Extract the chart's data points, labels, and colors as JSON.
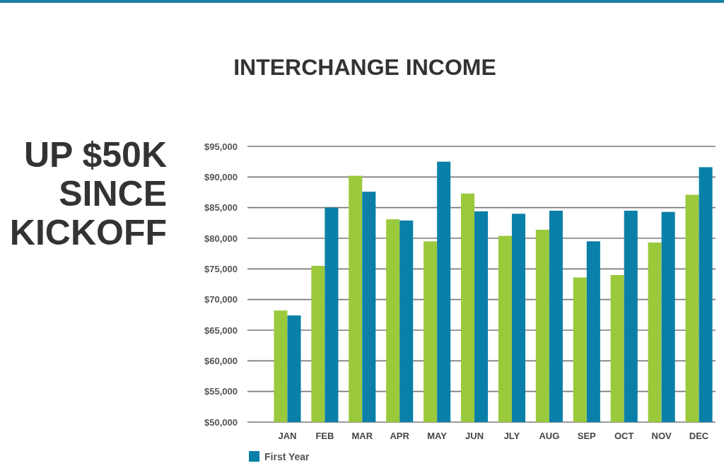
{
  "chart_data": {
    "type": "bar",
    "title": "INTERCHANGE INCOME",
    "annotations": [
      "UP $50K SINCE KICKOFF"
    ],
    "categories": [
      "JAN",
      "FEB",
      "MAR",
      "APR",
      "MAY",
      "JUN",
      "JLY",
      "AUG",
      "SEP",
      "OCT",
      "NOV",
      "DEC"
    ],
    "series": [
      {
        "color": "#9bc93c",
        "values": [
          68200,
          75500,
          90200,
          83100,
          79500,
          87300,
          80400,
          81400,
          73600,
          74000,
          79300,
          87100
        ]
      },
      {
        "name": "First Year",
        "color": "#0a80a8",
        "values": [
          67400,
          85000,
          87600,
          82900,
          92500,
          84400,
          84000,
          84500,
          79500,
          84500,
          84300,
          91600
        ]
      }
    ],
    "ylim": [
      50000,
      95000
    ],
    "yticks": [
      {
        "value": 50000,
        "label": "$50,000"
      },
      {
        "value": 55000,
        "label": "$55,000"
      },
      {
        "value": 60000,
        "label": "$60,000"
      },
      {
        "value": 65000,
        "label": "$65,000"
      },
      {
        "value": 70000,
        "label": "$70,000"
      },
      {
        "value": 75000,
        "label": "$75,000"
      },
      {
        "value": 80000,
        "label": "$80,000"
      },
      {
        "value": 85000,
        "label": "$85,000"
      },
      {
        "value": 90000,
        "label": "$90,000"
      },
      {
        "value": 95000,
        "label": "$95,000"
      }
    ],
    "grid": "y",
    "legend": "bottom left"
  }
}
